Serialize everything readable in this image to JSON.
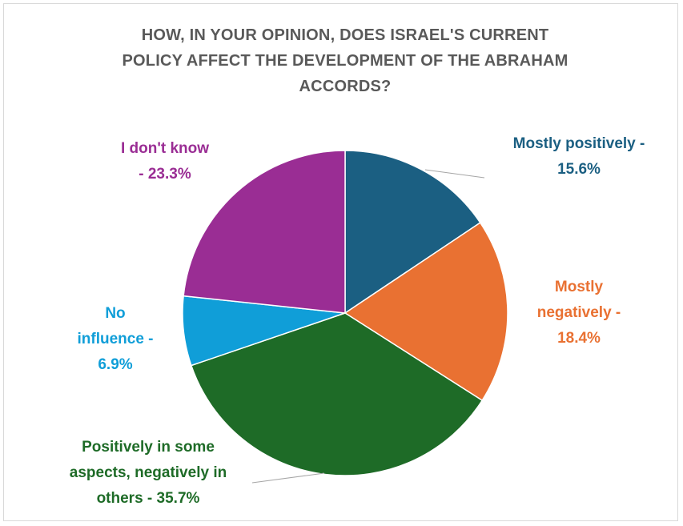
{
  "chart_data": {
    "type": "pie",
    "title": "HOW, IN YOUR OPINION, DOES ISRAEL'S CURRENT POLICY AFFECT THE DEVELOPMENT OF THE ABRAHAM ACCORDS?",
    "title_lines": [
      "HOW, IN YOUR OPINION, DOES ISRAEL'S CURRENT",
      "POLICY AFFECT THE DEVELOPMENT OF THE ABRAHAM",
      "ACCORDS?"
    ],
    "start_angle_deg": 0,
    "direction": "clockwise",
    "slices": [
      {
        "label": "Mostly positively",
        "value": 15.6,
        "color": "#1b5f82",
        "label_lines": [
          "Mostly positively -",
          "15.6%"
        ]
      },
      {
        "label": "Mostly negatively",
        "value": 18.4,
        "color": "#e97132",
        "label_lines": [
          "Mostly",
          "negatively -",
          "18.4%"
        ]
      },
      {
        "label": "Positively in some aspects, negatively in others",
        "value": 35.7,
        "color": "#1e6b27",
        "label_lines": [
          "Positively in some",
          "aspects, negatively in",
          "others - 35.7%"
        ]
      },
      {
        "label": "No influence",
        "value": 6.9,
        "color": "#109ed8",
        "label_lines": [
          "No",
          "influence -",
          "6.9%"
        ]
      },
      {
        "label": "I don't know",
        "value": 23.3,
        "color": "#9a2d94",
        "label_lines": [
          "I don't know",
          "- 23.3%"
        ]
      }
    ],
    "legend": "none",
    "data_labels": "outside with leader lines"
  }
}
